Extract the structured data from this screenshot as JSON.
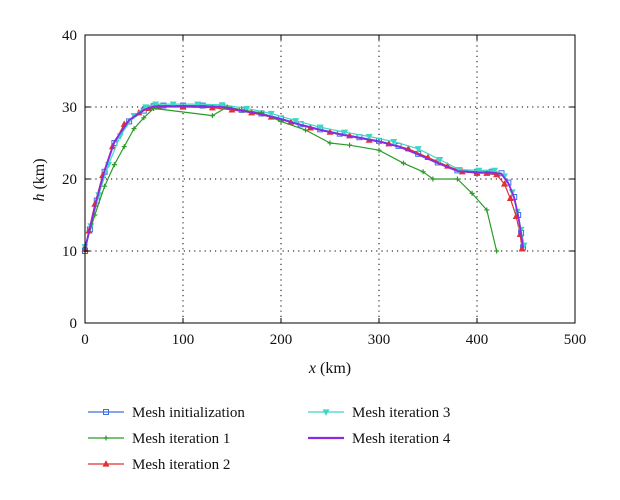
{
  "chart_data": {
    "type": "line",
    "xlabel_var": "x",
    "xlabel_unit": " (km)",
    "ylabel_var": "h",
    "ylabel_unit": " (km)",
    "xlim": [
      0,
      500
    ],
    "ylim": [
      0,
      40
    ],
    "x_ticks": [
      "0",
      "100",
      "200",
      "300",
      "400",
      "500"
    ],
    "y_ticks": [
      "0",
      "10",
      "20",
      "30",
      "40"
    ],
    "grid": true,
    "legend_position": "bottom",
    "series": [
      {
        "name": "Mesh initialization",
        "color": "#3d6fe0",
        "marker": "square",
        "x": [
          0,
          5,
          12,
          20,
          30,
          45,
          60,
          70,
          80,
          100,
          120,
          140,
          160,
          180,
          200,
          220,
          240,
          260,
          280,
          300,
          320,
          340,
          360,
          380,
          400,
          415,
          425,
          432,
          438,
          442,
          445,
          447
        ],
        "y": [
          10,
          13,
          17,
          21,
          25,
          28,
          29.5,
          30.1,
          30.2,
          30.2,
          30.2,
          30.1,
          29.6,
          29.1,
          28.4,
          27.6,
          26.9,
          26.3,
          25.8,
          25.3,
          24.6,
          23.5,
          22.3,
          21.2,
          21.0,
          21.0,
          20.8,
          19.5,
          17.5,
          15.0,
          12.5,
          10.5
        ]
      },
      {
        "name": "Mesh iteration 1",
        "color": "#2a9a28",
        "marker": "plus",
        "x": [
          0,
          10,
          20,
          30,
          40,
          50,
          60,
          70,
          130,
          145,
          160,
          180,
          200,
          225,
          250,
          270,
          300,
          325,
          345,
          355,
          380,
          395,
          410,
          420
        ],
        "y": [
          10.5,
          15,
          19,
          22,
          24.5,
          27,
          28.5,
          29.8,
          28.8,
          30,
          29.6,
          29.2,
          28,
          26.8,
          25,
          24.7,
          24,
          22.2,
          21,
          20,
          20,
          18,
          15.7,
          10
        ]
      },
      {
        "name": "Mesh iteration 2",
        "color": "#e03232",
        "marker": "triangle",
        "x": [
          0,
          4,
          10,
          18,
          28,
          40,
          55,
          65,
          75,
          100,
          130,
          150,
          170,
          190,
          210,
          230,
          250,
          270,
          290,
          310,
          330,
          350,
          370,
          385,
          400,
          410,
          420,
          428,
          434,
          440,
          444,
          446
        ],
        "y": [
          10.2,
          12.8,
          16.5,
          20.5,
          24.5,
          27.6,
          29.2,
          29.8,
          30,
          30,
          29.9,
          29.6,
          29.2,
          28.6,
          27.9,
          27.1,
          26.5,
          26,
          25.4,
          24.9,
          24.2,
          23,
          21.8,
          21,
          20.8,
          20.8,
          20.6,
          19.3,
          17.3,
          14.8,
          12.3,
          10.3
        ]
      },
      {
        "name": "Mesh iteration 3",
        "color": "#3fd6c6",
        "marker": "down-triangle",
        "x": [
          0,
          6,
          14,
          24,
          36,
          50,
          62,
          72,
          90,
          115,
          140,
          165,
          190,
          215,
          240,
          265,
          290,
          315,
          340,
          362,
          382,
          402,
          418,
          428,
          436,
          441,
          445,
          448
        ],
        "y": [
          10.6,
          13.5,
          17.8,
          22,
          26,
          28.8,
          30,
          30.4,
          30.4,
          30.4,
          30.3,
          29.8,
          29.1,
          28.1,
          27.2,
          26.5,
          25.9,
          25.2,
          24.2,
          22.7,
          21.3,
          21.2,
          21.2,
          20.4,
          18.2,
          15.5,
          13,
          10.8
        ]
      },
      {
        "name": "Mesh iteration 4",
        "color": "#8a2be2",
        "marker": "none",
        "x": [
          0,
          5,
          12,
          20,
          30,
          45,
          60,
          70,
          80,
          100,
          120,
          140,
          160,
          180,
          200,
          220,
          240,
          260,
          280,
          300,
          320,
          340,
          360,
          380,
          400,
          415,
          425,
          432,
          438,
          442,
          445,
          447
        ],
        "y": [
          10.3,
          13.2,
          17.2,
          21.2,
          25.2,
          28.2,
          29.6,
          30.1,
          30.1,
          30.1,
          30.1,
          30,
          29.5,
          29,
          28.3,
          27.5,
          26.8,
          26.2,
          25.7,
          25.2,
          24.5,
          23.4,
          22.2,
          21.1,
          20.9,
          20.9,
          20.7,
          19.4,
          17.4,
          14.9,
          12.4,
          10.4
        ]
      }
    ]
  }
}
